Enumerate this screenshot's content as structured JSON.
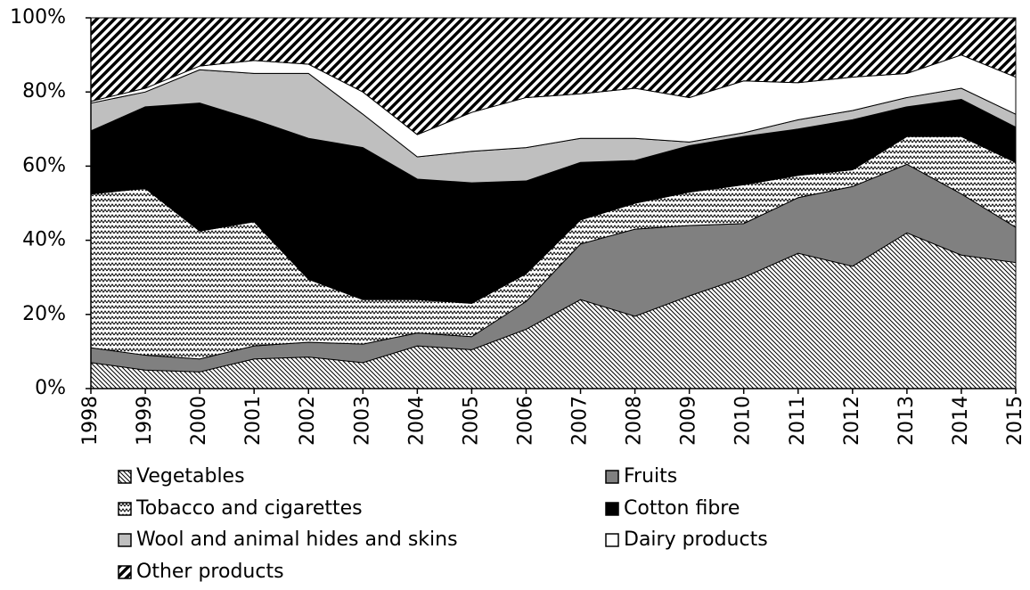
{
  "chart_data": {
    "type": "stacked_area",
    "categories": [
      "1998",
      "1999",
      "2000",
      "2001",
      "2002",
      "2003",
      "2004",
      "2005",
      "2006",
      "2007",
      "2008",
      "2009",
      "2010",
      "2011",
      "2012",
      "2013",
      "2014",
      "2015"
    ],
    "series": [
      {
        "name": "Vegetables",
        "color": "#000000",
        "pattern": "backslash",
        "values": [
          7,
          5,
          4.5,
          8,
          8.5,
          7,
          11.5,
          10.5,
          16,
          24,
          19.5,
          25,
          30,
          36.5,
          33,
          42,
          36,
          34
        ]
      },
      {
        "name": "Fruits",
        "color": "#808080",
        "pattern": "solid",
        "values": [
          4,
          4,
          3.5,
          3.5,
          4,
          5,
          3.5,
          3.5,
          7.5,
          15,
          23.5,
          19,
          14.5,
          15,
          21.5,
          18.5,
          16.5,
          9.5
        ]
      },
      {
        "name": "Tobacco and cigarettes",
        "color": "#000000",
        "pattern": "zigzag",
        "values": [
          41.5,
          45,
          34.5,
          33.5,
          17,
          12,
          9,
          9,
          7.5,
          6.5,
          7,
          9,
          10.5,
          6,
          4.5,
          7.5,
          15.5,
          17.5
        ]
      },
      {
        "name": "Cotton fibre",
        "color": "#000000",
        "pattern": "solid",
        "values": [
          17,
          22,
          34.5,
          27.5,
          38,
          41,
          32.5,
          32.5,
          25,
          15.5,
          11.5,
          12.5,
          13,
          12.5,
          13.5,
          8,
          10,
          9.5
        ]
      },
      {
        "name": "Wool and animal hides and skins",
        "color": "#bfbfbf",
        "pattern": "solid",
        "values": [
          7.5,
          4,
          9,
          12.5,
          17.5,
          9,
          6,
          8.5,
          9,
          6.5,
          6,
          1,
          1,
          2.5,
          2.5,
          2.5,
          3,
          3.5
        ]
      },
      {
        "name": "Dairy products",
        "color": "#ffffff",
        "pattern": "solid",
        "values": [
          0.5,
          1,
          1,
          3.5,
          2.5,
          6,
          6,
          10.5,
          13.5,
          12,
          13.5,
          12,
          14,
          10,
          9,
          6.5,
          9,
          10
        ]
      },
      {
        "name": "Other products",
        "color": "#000000",
        "pattern": "slash",
        "values": [
          22.5,
          19,
          13,
          11.5,
          12.5,
          20,
          31.5,
          25.5,
          21.5,
          20.5,
          19,
          21.5,
          17,
          17.5,
          16,
          15,
          10,
          16
        ]
      }
    ],
    "ylim": [
      0,
      100
    ],
    "yticks": [
      {
        "value": 0,
        "label": "0%"
      },
      {
        "value": 20,
        "label": "20%"
      },
      {
        "value": 40,
        "label": "40%"
      },
      {
        "value": 60,
        "label": "60%"
      },
      {
        "value": 80,
        "label": "80%"
      },
      {
        "value": 100,
        "label": "100%"
      }
    ]
  }
}
